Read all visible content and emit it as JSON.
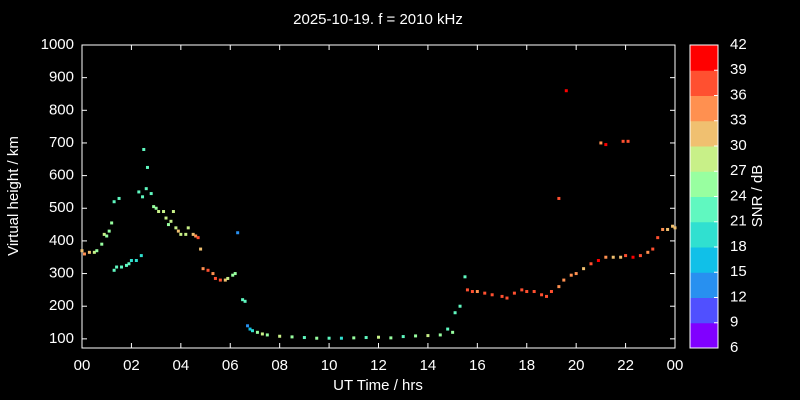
{
  "chart_data": {
    "type": "scatter",
    "title": "2025-10-19. f = 2010 kHz",
    "xlabel": "UT Time / hrs",
    "ylabel": "Virtual height / km",
    "xlim": [
      0,
      24
    ],
    "xticks": [
      {
        "value": 0,
        "label": "00"
      },
      {
        "value": 2,
        "label": "02"
      },
      {
        "value": 4,
        "label": "04"
      },
      {
        "value": 6,
        "label": "06"
      },
      {
        "value": 8,
        "label": "08"
      },
      10,
      12,
      14,
      16,
      18,
      20,
      22,
      {
        "value": 24,
        "label": "00"
      }
    ],
    "ylim": [
      72,
      1000
    ],
    "yticks": [
      100,
      200,
      300,
      400,
      500,
      600,
      700,
      800,
      900,
      1000
    ],
    "x": [
      0.0,
      0.1,
      0.3,
      0.5,
      0.6,
      0.8,
      0.9,
      1.0,
      1.1,
      1.2,
      1.3,
      1.5,
      1.3,
      1.4,
      1.6,
      1.8,
      1.9,
      2.0,
      2.2,
      2.4,
      2.3,
      2.45,
      2.5,
      2.65,
      2.6,
      2.8,
      2.9,
      3.0,
      3.1,
      3.3,
      3.4,
      3.5,
      3.6,
      3.7,
      3.8,
      3.9,
      4.0,
      4.2,
      4.3,
      4.5,
      4.6,
      4.7,
      4.8,
      4.9,
      5.1,
      5.3,
      5.4,
      5.6,
      5.8,
      5.9,
      6.1,
      6.2,
      6.3,
      6.5,
      6.6,
      6.7,
      6.8,
      6.9,
      7.1,
      7.3,
      7.5,
      8.0,
      8.5,
      9.0,
      9.5,
      10.0,
      10.5,
      11.0,
      11.5,
      12.0,
      12.5,
      13.0,
      13.5,
      14.0,
      14.5,
      14.8,
      15.0,
      15.1,
      15.3,
      15.5,
      15.6,
      15.8,
      16.0,
      16.3,
      16.6,
      17.0,
      17.2,
      17.5,
      17.8,
      18.0,
      18.3,
      18.6,
      18.8,
      19.0,
      19.3,
      19.5,
      19.8,
      20.0,
      20.3,
      20.6,
      20.9,
      21.2,
      21.5,
      21.8,
      22.0,
      22.3,
      22.6,
      22.9,
      23.1,
      23.3,
      23.5,
      23.7,
      23.9,
      24.0,
      19.3,
      19.6,
      21.0,
      21.2,
      21.9,
      22.1
    ],
    "y": [
      370,
      360,
      365,
      365,
      370,
      390,
      420,
      415,
      430,
      455,
      520,
      530,
      310,
      320,
      320,
      325,
      330,
      340,
      340,
      355,
      550,
      535,
      680,
      625,
      560,
      545,
      505,
      500,
      490,
      490,
      470,
      450,
      460,
      490,
      440,
      430,
      420,
      420,
      440,
      420,
      415,
      410,
      375,
      315,
      310,
      300,
      285,
      280,
      280,
      285,
      295,
      300,
      425,
      220,
      215,
      140,
      130,
      125,
      120,
      115,
      112,
      108,
      106,
      104,
      102,
      102,
      102,
      103,
      104,
      105,
      103,
      107,
      109,
      110,
      112,
      130,
      120,
      180,
      200,
      290,
      250,
      245,
      245,
      240,
      235,
      230,
      225,
      240,
      250,
      245,
      245,
      235,
      230,
      245,
      260,
      280,
      295,
      300,
      315,
      330,
      340,
      350,
      350,
      350,
      355,
      350,
      355,
      365,
      375,
      410,
      435,
      435,
      445,
      440,
      530,
      860,
      700,
      695,
      705,
      705
    ],
    "snr": [
      31,
      34,
      31,
      28,
      25,
      25,
      28,
      25,
      25,
      25,
      22,
      22,
      22,
      22,
      22,
      22,
      22,
      19,
      19,
      19,
      22,
      22,
      22,
      22,
      22,
      22,
      25,
      25,
      28,
      28,
      28,
      25,
      28,
      28,
      28,
      31,
      28,
      28,
      28,
      31,
      34,
      37,
      31,
      34,
      37,
      34,
      37,
      37,
      31,
      28,
      25,
      25,
      13,
      22,
      22,
      13,
      16,
      19,
      25,
      28,
      25,
      28,
      25,
      22,
      25,
      22,
      19,
      25,
      22,
      28,
      25,
      22,
      25,
      28,
      25,
      22,
      25,
      22,
      22,
      22,
      37,
      37,
      34,
      37,
      37,
      37,
      37,
      37,
      37,
      37,
      37,
      37,
      37,
      37,
      34,
      34,
      34,
      34,
      31,
      37,
      40,
      34,
      31,
      31,
      37,
      40,
      37,
      34,
      37,
      37,
      34,
      31,
      31,
      31,
      37,
      40,
      34,
      40,
      37,
      37
    ],
    "colorbar": {
      "label": "SNR / dB",
      "lim": [
        6,
        42
      ],
      "ticks": [
        6,
        9,
        12,
        15,
        18,
        21,
        24,
        27,
        30,
        33,
        36,
        39,
        42
      ],
      "colors": [
        "#8000ff",
        "#5050ff",
        "#2890f0",
        "#10c0e8",
        "#30e0d0",
        "#60f8c0",
        "#98ffa0",
        "#c8f088",
        "#f0c070",
        "#ff9050",
        "#ff5030",
        "#ff0000"
      ]
    }
  }
}
